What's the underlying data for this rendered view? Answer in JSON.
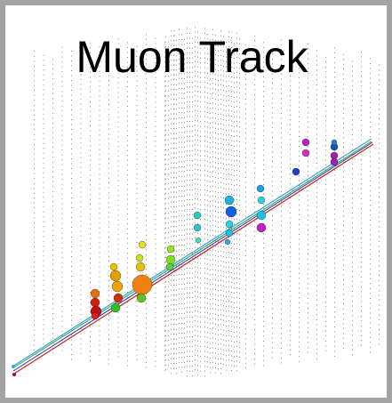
{
  "header": {
    "title": "Muon Track"
  }
}
